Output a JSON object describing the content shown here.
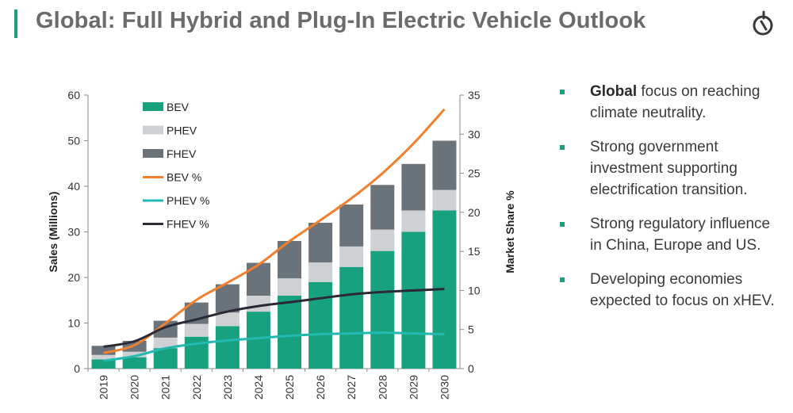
{
  "page": {
    "title": "Global: Full Hybrid and Plug-In Electric Vehicle Outlook",
    "logo_icon": "compass-logo-icon"
  },
  "bullets": [
    {
      "bold": "Global",
      "text": " focus on reaching climate neutrality."
    },
    {
      "bold": "",
      "text": "Strong government investment supporting electrification transition."
    },
    {
      "bold": "",
      "text": "Strong regulatory influence in China, Europe and US."
    },
    {
      "bold": "",
      "text": "Developing economies expected to focus on xHEV."
    }
  ],
  "colors": {
    "accent": "#1a9e7e",
    "bev": "#17a17e",
    "phev": "#cdd1d4",
    "fhev": "#6b737a",
    "bev_pct": "#f07f2e",
    "phev_pct": "#22b9b0",
    "fhev_pct": "#2a2a36"
  },
  "chart_data": {
    "type": "bar",
    "stacked": true,
    "categories": [
      "2019",
      "2020",
      "2021",
      "2022",
      "2023",
      "2024",
      "2025",
      "2026",
      "2027",
      "2028",
      "2029",
      "2030"
    ],
    "ylabel": "Sales (Millions)",
    "y2label": "Market Share %",
    "ylim": [
      0,
      60
    ],
    "yticks": [
      0,
      10,
      20,
      30,
      40,
      50,
      60
    ],
    "y2lim": [
      0,
      35
    ],
    "y2ticks": [
      0,
      5,
      10,
      15,
      20,
      25,
      30,
      35
    ],
    "legend_position": "top-left",
    "series": [
      {
        "name": "BEV",
        "kind": "bar",
        "values": [
          2,
          2.5,
          4.5,
          7,
          9.3,
          12.5,
          16,
          19,
          22.3,
          25.8,
          30,
          34.7
        ]
      },
      {
        "name": "PHEV",
        "kind": "bar",
        "values": [
          1,
          1.2,
          2.3,
          2.8,
          3,
          3.5,
          3.8,
          4.3,
          4.5,
          4.7,
          4.7,
          4.5
        ]
      },
      {
        "name": "FHEV",
        "kind": "bar",
        "values": [
          2,
          2.4,
          3.7,
          4.7,
          6.2,
          7.2,
          8.2,
          8.7,
          9.2,
          9.8,
          10.2,
          10.8
        ]
      },
      {
        "name": "BEV %",
        "kind": "line",
        "axis": "y2",
        "values": [
          2,
          3,
          5.8,
          8.8,
          11,
          13.3,
          16.3,
          19,
          21.8,
          25,
          28.8,
          33.2
        ]
      },
      {
        "name": "PHEV %",
        "kind": "line",
        "axis": "y2",
        "values": [
          1,
          1.6,
          2.6,
          3.2,
          3.6,
          3.9,
          4.2,
          4.4,
          4.5,
          4.6,
          4.5,
          4.4
        ]
      },
      {
        "name": "FHEV %",
        "kind": "line",
        "axis": "y2",
        "values": [
          2.8,
          3.5,
          5.3,
          6.3,
          7.3,
          8,
          8.5,
          9,
          9.5,
          9.8,
          10,
          10.2
        ]
      }
    ]
  }
}
